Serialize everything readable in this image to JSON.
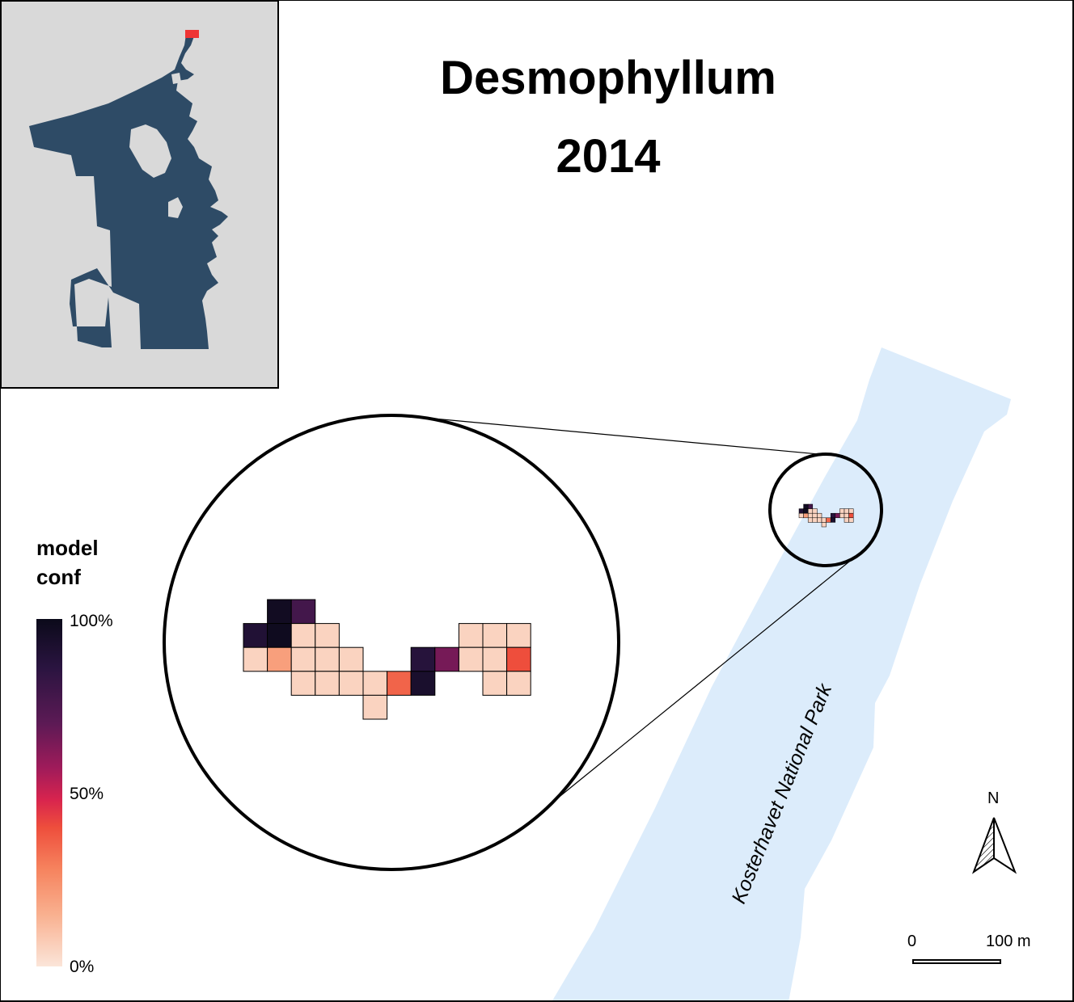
{
  "title": {
    "line1": "Desmophyllum",
    "line2": "2014"
  },
  "legend": {
    "title_line1": "model",
    "title_line2": "conf",
    "tick_max": "100%",
    "tick_mid": "50%",
    "tick_min": "0%"
  },
  "north_arrow": {
    "label": "N",
    "icon": "north-arrow-icon"
  },
  "scale_bar": {
    "start_label": "0",
    "end_label": "100 m"
  },
  "park_label": "Kosterhavet National Park",
  "colors": {
    "inset_background": "#d9d9d9",
    "land_fill": "#2e4b66",
    "highlight": "#ef3535",
    "park_fill": "#dcecfb"
  },
  "grid_cells": [
    {
      "col": 1,
      "row": 0,
      "value": 0.97
    },
    {
      "col": 2,
      "row": 0,
      "value": 0.78
    },
    {
      "col": 0,
      "row": 1,
      "value": 0.9
    },
    {
      "col": 1,
      "row": 1,
      "value": 0.98
    },
    {
      "col": 2,
      "row": 1,
      "value": 0.05
    },
    {
      "col": 3,
      "row": 1,
      "value": 0.05
    },
    {
      "col": 9,
      "row": 1,
      "value": 0.05
    },
    {
      "col": 10,
      "row": 1,
      "value": 0.05
    },
    {
      "col": 11,
      "row": 1,
      "value": 0.05
    },
    {
      "col": 0,
      "row": 2,
      "value": 0.05
    },
    {
      "col": 1,
      "row": 2,
      "value": 0.2
    },
    {
      "col": 2,
      "row": 2,
      "value": 0.05
    },
    {
      "col": 3,
      "row": 2,
      "value": 0.05
    },
    {
      "col": 4,
      "row": 2,
      "value": 0.05
    },
    {
      "col": 7,
      "row": 2,
      "value": 0.88
    },
    {
      "col": 8,
      "row": 2,
      "value": 0.65
    },
    {
      "col": 9,
      "row": 2,
      "value": 0.05
    },
    {
      "col": 10,
      "row": 2,
      "value": 0.05
    },
    {
      "col": 11,
      "row": 2,
      "value": 0.4
    },
    {
      "col": 2,
      "row": 3,
      "value": 0.05
    },
    {
      "col": 3,
      "row": 3,
      "value": 0.05
    },
    {
      "col": 4,
      "row": 3,
      "value": 0.05
    },
    {
      "col": 5,
      "row": 3,
      "value": 0.05
    },
    {
      "col": 6,
      "row": 3,
      "value": 0.35
    },
    {
      "col": 7,
      "row": 3,
      "value": 0.93
    },
    {
      "col": 10,
      "row": 3,
      "value": 0.05
    },
    {
      "col": 11,
      "row": 3,
      "value": 0.05
    },
    {
      "col": 5,
      "row": 4,
      "value": 0.05
    }
  ]
}
